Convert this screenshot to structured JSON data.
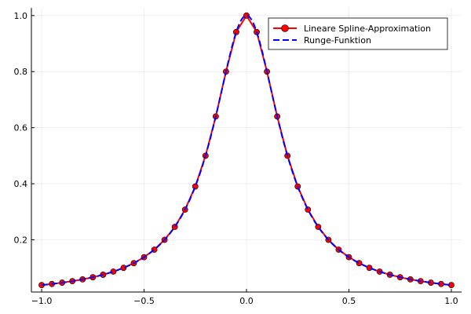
{
  "chart_data": {
    "type": "line",
    "title": "",
    "xlabel": "",
    "ylabel": "",
    "xlim": [
      -1.05,
      1.05
    ],
    "ylim": [
      0.0137,
      1.0275
    ],
    "grid": true,
    "legend_position": "top-right",
    "x_ticks": [
      {
        "value": -1.0,
        "label": "−1.0"
      },
      {
        "value": -0.5,
        "label": "−0.5"
      },
      {
        "value": 0.0,
        "label": "0.0"
      },
      {
        "value": 0.5,
        "label": "0.5"
      },
      {
        "value": 1.0,
        "label": "1.0"
      }
    ],
    "y_ticks": [
      {
        "value": 0.2,
        "label": "0.2"
      },
      {
        "value": 0.4,
        "label": "0.4"
      },
      {
        "value": 0.6,
        "label": "0.6"
      },
      {
        "value": 0.8,
        "label": "0.8"
      },
      {
        "value": 1.0,
        "label": "1.0"
      }
    ],
    "series": [
      {
        "name": "Lineare Spline-Approximation",
        "color": "#ff0000",
        "marker_fill": "#ff0000",
        "marker_stroke": "#000000",
        "style": "solid-with-markers",
        "x": [
          -1.0,
          -0.95,
          -0.9,
          -0.85,
          -0.8,
          -0.75,
          -0.7,
          -0.65,
          -0.6,
          -0.55,
          -0.5,
          -0.45,
          -0.4,
          -0.35,
          -0.3,
          -0.25,
          -0.2,
          -0.15,
          -0.1,
          -0.05,
          0.0,
          0.05,
          0.1,
          0.15,
          0.2,
          0.25,
          0.3,
          0.35,
          0.4,
          0.45,
          0.5,
          0.55,
          0.6,
          0.65,
          0.7,
          0.75,
          0.8,
          0.85,
          0.9,
          0.95,
          1.0
        ],
        "y": [
          0.0385,
          0.0424,
          0.0471,
          0.0525,
          0.0588,
          0.0664,
          0.0755,
          0.0865,
          0.1,
          0.1168,
          0.1379,
          0.165,
          0.2,
          0.2462,
          0.3077,
          0.3902,
          0.5,
          0.64,
          0.8,
          0.9412,
          1.0,
          0.9412,
          0.8,
          0.64,
          0.5,
          0.3902,
          0.3077,
          0.2462,
          0.2,
          0.165,
          0.1379,
          0.1168,
          0.1,
          0.0865,
          0.0755,
          0.0664,
          0.0588,
          0.0525,
          0.0471,
          0.0424,
          0.0385
        ]
      },
      {
        "name": "Runge-Funktion",
        "color": "#0000ff",
        "style": "dashed",
        "function": "1/(1+25x^2)",
        "x_range": [
          -1.0,
          1.0
        ]
      }
    ]
  }
}
